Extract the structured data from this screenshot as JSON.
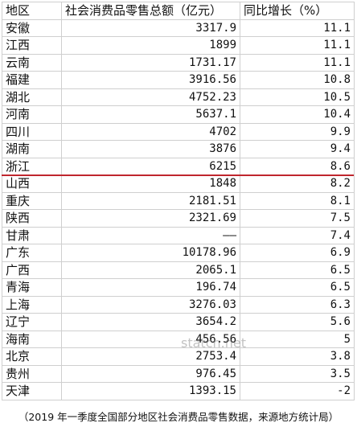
{
  "table": {
    "headers": [
      "地区",
      "社会消费品零售总额（亿元）",
      "同比增长（%）"
    ],
    "rows": [
      [
        "安徽",
        "3317.9",
        "11.1"
      ],
      [
        "江西",
        "1899",
        "11.1"
      ],
      [
        "云南",
        "1731.17",
        "11.1"
      ],
      [
        "福建",
        "3916.56",
        "10.8"
      ],
      [
        "湖北",
        "4752.23",
        "10.5"
      ],
      [
        "河南",
        "5637.1",
        "10.4"
      ],
      [
        "四川",
        "4702",
        "9.9"
      ],
      [
        "湖南",
        "3876",
        "9.4"
      ],
      [
        "浙江",
        "6215",
        "8.6"
      ],
      [
        "山西",
        "1848",
        "8.2"
      ],
      [
        "重庆",
        "2181.51",
        "8.1"
      ],
      [
        "陕西",
        "2321.69",
        "7.5"
      ],
      [
        "甘肃",
        "——",
        "7.4"
      ],
      [
        "广东",
        "10178.96",
        "6.9"
      ],
      [
        "广西",
        "2065.1",
        "6.5"
      ],
      [
        "青海",
        "196.74",
        "6.5"
      ],
      [
        "上海",
        "3276.03",
        "6.3"
      ],
      [
        "辽宁",
        "3654.2",
        "5.6"
      ],
      [
        "海南",
        "456.56",
        "5"
      ],
      [
        "北京",
        "2753.4",
        "3.8"
      ],
      [
        "贵州",
        "976.45",
        "3.5"
      ],
      [
        "天津",
        "1393.15",
        "-2"
      ]
    ],
    "divider_after_row": 8,
    "divider_color": "#c0262d"
  },
  "watermark": "statcn.net",
  "caption": "（2019 年一季度全国部分地区社会消费品零售数据，来源地方统计局）"
}
